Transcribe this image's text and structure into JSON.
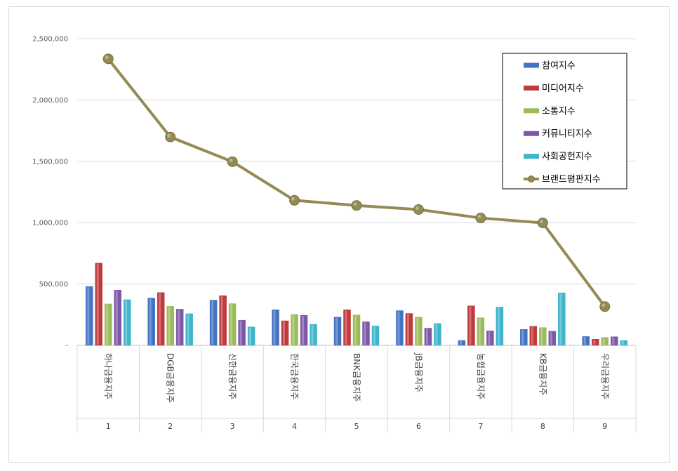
{
  "chart_data": {
    "type": "bar",
    "categories": [
      "하나금융지주",
      "DGB금융지주",
      "신한금융지주",
      "한국금융지주",
      "BNK금융지주",
      "JB금융지주",
      "농협금융지주",
      "KB금융지주",
      "우리금융지주"
    ],
    "ranks": [
      "1",
      "2",
      "3",
      "4",
      "5",
      "6",
      "7",
      "8",
      "9"
    ],
    "series": [
      {
        "name": "참여지수",
        "color": "#4472c4",
        "values": [
          480000,
          385000,
          368000,
          290000,
          230000,
          283000,
          40000,
          130000,
          72000
        ]
      },
      {
        "name": "미디어지수",
        "color": "#c0393b",
        "values": [
          670000,
          430000,
          405000,
          200000,
          290000,
          260000,
          322000,
          155000,
          50000
        ]
      },
      {
        "name": "소통지수",
        "color": "#9bbb59",
        "values": [
          338000,
          318000,
          340000,
          252000,
          248000,
          230000,
          225000,
          145000,
          65000
        ]
      },
      {
        "name": "커뮤니티지수",
        "color": "#7e57a8",
        "values": [
          450000,
          295000,
          205000,
          245000,
          192000,
          140000,
          118000,
          115000,
          70000
        ]
      },
      {
        "name": "사회공헌지수",
        "color": "#3fb5cc",
        "values": [
          372000,
          258000,
          150000,
          172000,
          158000,
          178000,
          312000,
          428000,
          40000
        ]
      }
    ],
    "line": {
      "name": "브랜드평판지수",
      "color": "#948a54",
      "values": [
        2335000,
        1698000,
        1497000,
        1182000,
        1140000,
        1107000,
        1038000,
        998000,
        316000
      ]
    },
    "yticks": [
      "-",
      "500,000",
      "1,000,000",
      "1,500,000",
      "2,000,000",
      "2,500,000"
    ],
    "ylim": [
      0,
      2500000
    ],
    "legend_position": "top-right",
    "grid": true
  }
}
